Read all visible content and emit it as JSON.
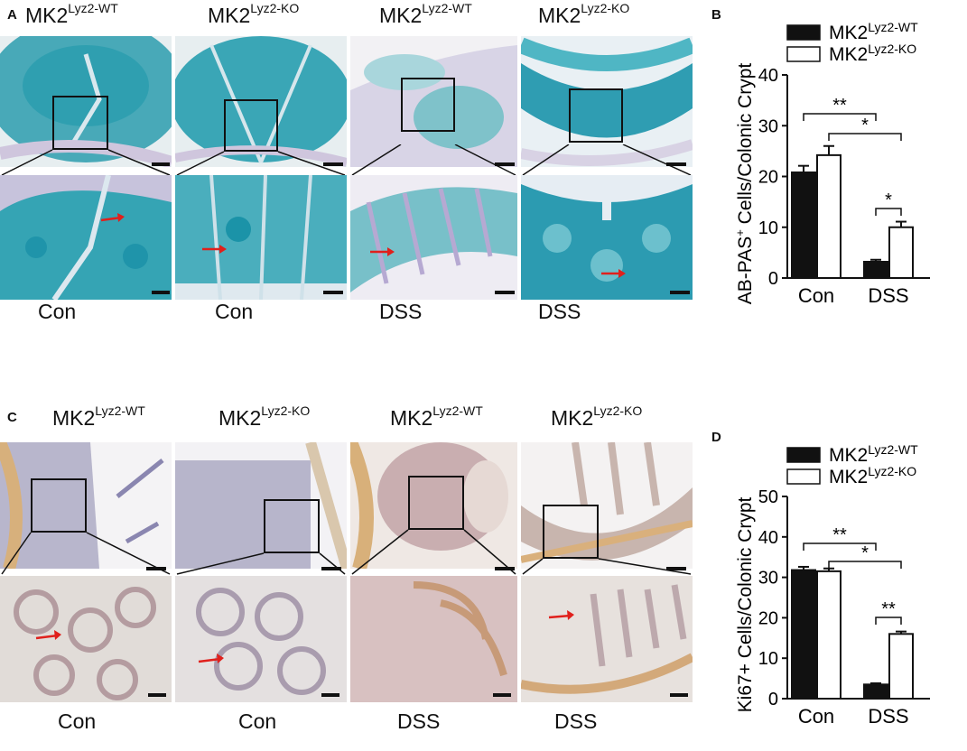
{
  "panel_a": {
    "letter": "A",
    "group_labels": [
      {
        "base": "MK2",
        "sup": "Lyz2-WT"
      },
      {
        "base": "MK2",
        "sup": "Lyz2-KO"
      },
      {
        "base": "MK2",
        "sup": "Lyz2-WT"
      },
      {
        "base": "MK2",
        "sup": "Lyz2-KO"
      }
    ],
    "conditions": [
      "Con",
      "Con",
      "DSS",
      "DSS"
    ],
    "stain_colors": {
      "primary": "#2aa7b5",
      "secondary": "#7a6fb0",
      "background": "#e8eef3"
    }
  },
  "panel_c": {
    "letter": "C",
    "group_labels": [
      {
        "base": "MK2",
        "sup": "Lyz2-WT"
      },
      {
        "base": "MK2",
        "sup": "Lyz2-KO"
      },
      {
        "base": "MK2",
        "sup": "Lyz2-WT"
      },
      {
        "base": "MK2",
        "sup": "Lyz2-KO"
      }
    ],
    "conditions": [
      "Con",
      "Con",
      "DSS",
      "DSS"
    ],
    "stain_colors": {
      "primary": "#c9a27a",
      "secondary": "#6d6aa0",
      "background": "#f1ece6"
    }
  },
  "chart_data": [
    {
      "panel": "B",
      "type": "bar",
      "ylabel_main": "AB-PAS",
      "ylabel_sup": "+",
      "ylabel_rest": " Cells/Colonic Crypt",
      "categories": [
        "Con",
        "DSS"
      ],
      "series": [
        {
          "name_base": "MK2",
          "name_sup": "Lyz2-WT",
          "fill": "#111111",
          "values": [
            20.8,
            3.2
          ],
          "errors": [
            1.3,
            0.4
          ]
        },
        {
          "name_base": "MK2",
          "name_sup": "Lyz2-KO",
          "fill": "#ffffff",
          "values": [
            24.2,
            10.0
          ],
          "errors": [
            1.8,
            1.1
          ]
        }
      ],
      "ylim": [
        0,
        40
      ],
      "yticks": [
        0,
        10,
        20,
        30,
        40
      ],
      "significance": [
        "**",
        "*",
        "*"
      ]
    },
    {
      "panel": "D",
      "type": "bar",
      "ylabel_main": "Ki67+ Cells/Colonic Crypt",
      "ylabel_sup": "",
      "ylabel_rest": "",
      "categories": [
        "Con",
        "DSS"
      ],
      "series": [
        {
          "name_base": "MK2",
          "name_sup": "Lyz2-WT",
          "fill": "#111111",
          "values": [
            31.8,
            3.5
          ],
          "errors": [
            0.8,
            0.3
          ]
        },
        {
          "name_base": "MK2",
          "name_sup": "Lyz2-KO",
          "fill": "#ffffff",
          "values": [
            31.5,
            16.0
          ],
          "errors": [
            0.7,
            0.6
          ]
        }
      ],
      "ylim": [
        0,
        50
      ],
      "yticks": [
        0,
        10,
        20,
        30,
        40,
        50
      ],
      "significance": [
        "**",
        "*",
        "**"
      ]
    }
  ]
}
